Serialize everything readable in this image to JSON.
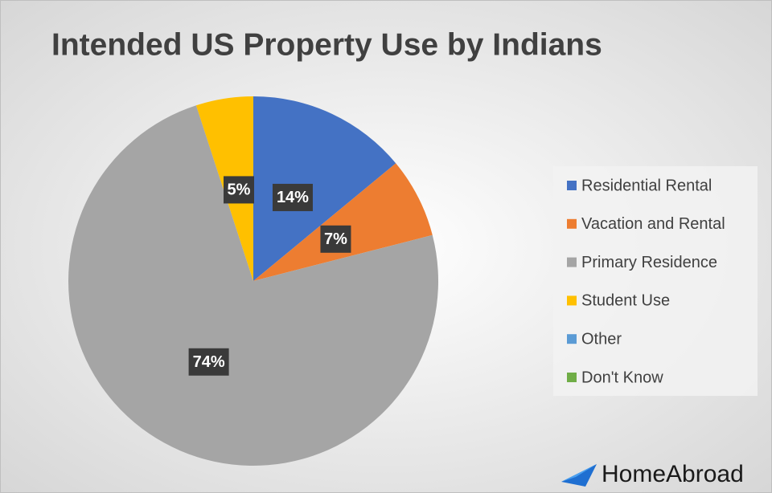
{
  "chart_data": {
    "type": "pie",
    "title": "Intended US Property Use by Indians",
    "categories": [
      "Residential Rental",
      "Vacation and Rental",
      "Primary Residence",
      "Student Use",
      "Other",
      "Don't Know"
    ],
    "values": [
      14,
      7,
      74,
      5,
      0,
      0
    ],
    "value_labels": [
      "14%",
      "7%",
      "74%",
      "5%",
      null,
      null
    ],
    "colors": [
      "#4472c4",
      "#ed7d31",
      "#a5a5a5",
      "#ffc000",
      "#5b9bd5",
      "#70ad47"
    ],
    "legend": "right"
  },
  "logo": "HomeAbroad"
}
